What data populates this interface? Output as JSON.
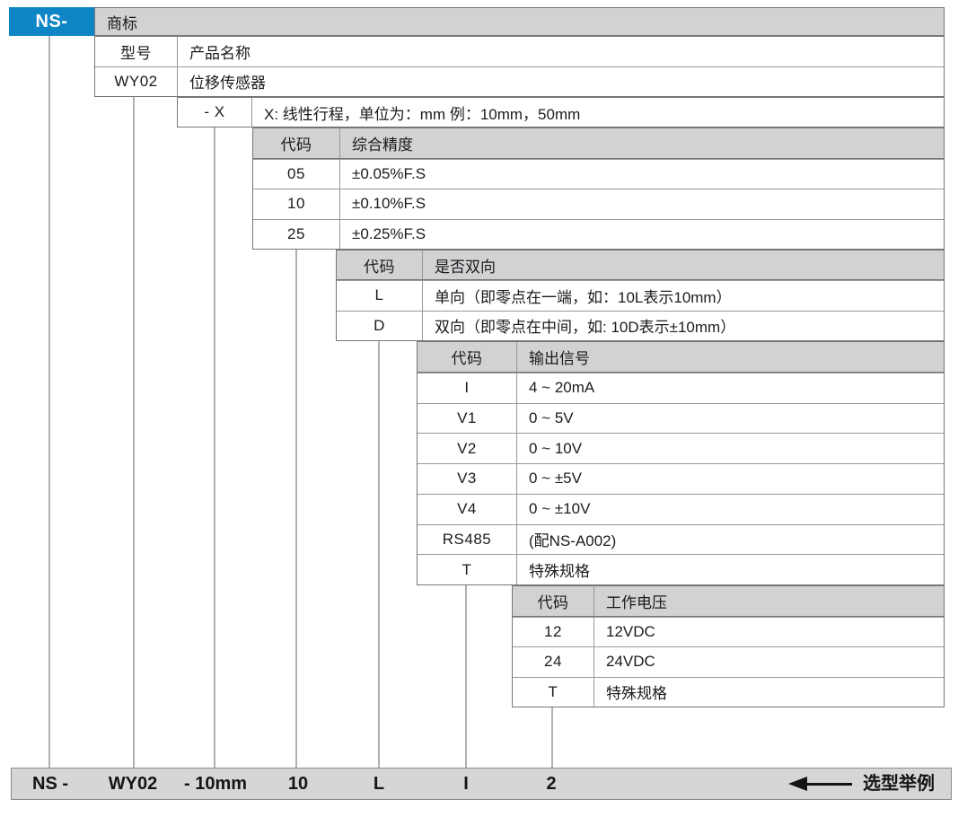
{
  "brand": {
    "prefix": "NS-"
  },
  "trademark": {
    "label": "商标"
  },
  "model_table": {
    "headers": [
      "型号",
      "产品名称"
    ],
    "rows": [
      [
        "WY02",
        "位移传感器"
      ]
    ]
  },
  "stroke_row": {
    "code": "- X",
    "desc": "X: 线性行程，单位为：mm 例：10mm，50mm"
  },
  "accuracy_table": {
    "headers": [
      "代码",
      "综合精度"
    ],
    "rows": [
      [
        "05",
        "±0.05%F.S"
      ],
      [
        "10",
        "±0.10%F.S"
      ],
      [
        "25",
        "±0.25%F.S"
      ]
    ]
  },
  "direction_table": {
    "headers": [
      "代码",
      "是否双向"
    ],
    "rows": [
      [
        "L",
        "单向（即零点在一端，如：10L表示10mm）"
      ],
      [
        "D",
        "双向（即零点在中间，如: 10D表示±10mm）"
      ]
    ]
  },
  "output_table": {
    "headers": [
      "代码",
      "输出信号"
    ],
    "rows": [
      [
        "I",
        "4 ~ 20mA"
      ],
      [
        "V1",
        "0 ~ 5V"
      ],
      [
        "V2",
        "0 ~ 10V"
      ],
      [
        "V3",
        "0 ~ ±5V"
      ],
      [
        "V4",
        "0 ~ ±10V"
      ],
      [
        "RS485",
        "(配NS-A002)"
      ],
      [
        "T",
        "特殊规格"
      ]
    ]
  },
  "voltage_table": {
    "headers": [
      "代码",
      "工作电压"
    ],
    "rows": [
      [
        "12",
        "12VDC"
      ],
      [
        "24",
        "24VDC"
      ],
      [
        "T",
        "特殊规格"
      ]
    ]
  },
  "example_bar": {
    "segments": [
      "NS -",
      "WY02",
      "- 10mm",
      "10",
      "L",
      "I",
      "2"
    ],
    "label": "选型举例",
    "arrow_icon": "left-arrow"
  },
  "colors": {
    "accent_blue": "#0e86c6",
    "header_gray": "#d2d2d5",
    "bar_gray": "#d6d6d8",
    "border_dark": "#767678",
    "border_light": "#98989b"
  }
}
